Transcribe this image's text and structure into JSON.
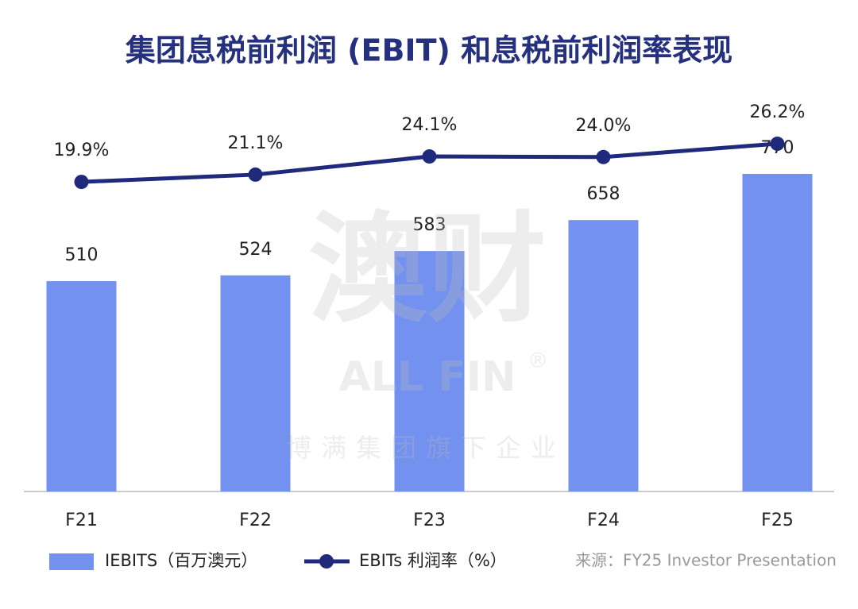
{
  "chart_data": {
    "type": "bar",
    "title": "集团息税前利润 (EBIT) 和息税前利润率表现",
    "categories": [
      "F21",
      "F22",
      "F23",
      "F24",
      "F25"
    ],
    "series": [
      {
        "name": "IEBITS（百万澳元）",
        "type": "bar",
        "color": "#7391ee",
        "values": [
          510,
          524,
          583,
          658,
          770
        ]
      },
      {
        "name": "EBITs 利润率（%）",
        "type": "line",
        "axis": "y2",
        "color": "#1f2a7c",
        "values": [
          19.9,
          21.1,
          24.1,
          24.0,
          26.2
        ],
        "value_labels": [
          "19.9%",
          "21.1%",
          "24.1%",
          "24.0%",
          "26.2%"
        ]
      }
    ],
    "ylim": [
      0,
      770
    ],
    "y2lim": [
      0,
      30
    ],
    "legend": "bottom",
    "source": "来源：FY25 Investor Presentation",
    "watermark": {
      "logo": "澳财",
      "brand": "ALL FIN",
      "mark": "®",
      "tagline": "博满集团旗下企业"
    }
  }
}
